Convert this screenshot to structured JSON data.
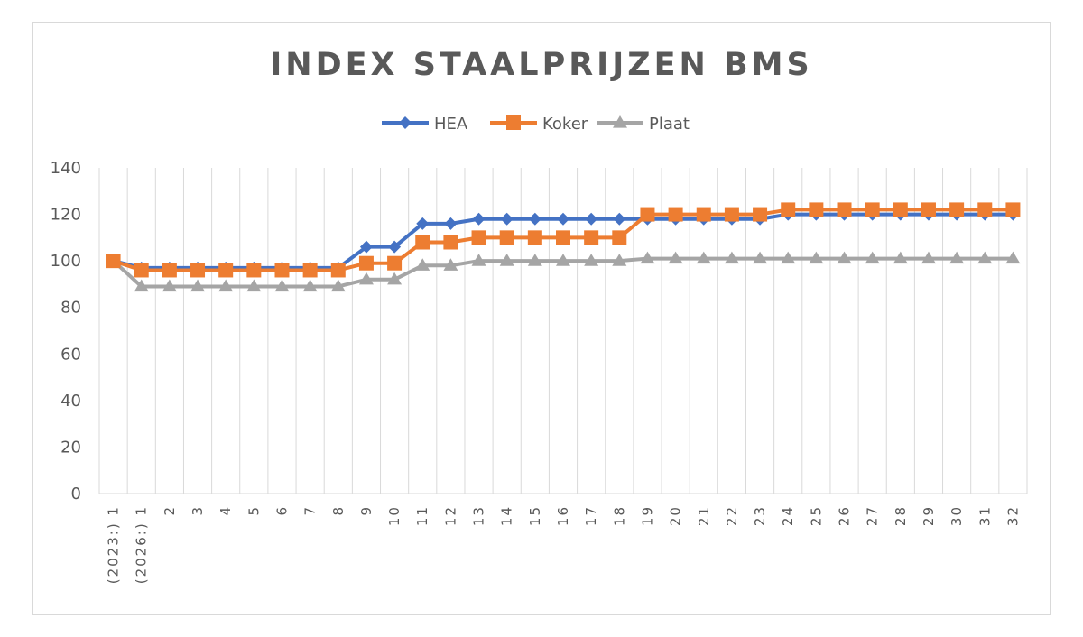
{
  "chart_data": {
    "type": "line",
    "title": "INDEX STAALPRIJZEN BMS",
    "xlabel": "",
    "ylabel": "",
    "ylim": [
      0,
      140
    ],
    "yticks": [
      0,
      20,
      40,
      60,
      80,
      100,
      120,
      140
    ],
    "grid": "vertical",
    "legend_position": "top",
    "categories": [
      "(2023:) 1",
      "(2026:) 1",
      "2",
      "3",
      "4",
      "5",
      "6",
      "7",
      "8",
      "9",
      "10",
      "11",
      "12",
      "13",
      "14",
      "15",
      "16",
      "17",
      "18",
      "19",
      "20",
      "21",
      "22",
      "23",
      "24",
      "25",
      "26",
      "27",
      "28",
      "29",
      "30",
      "31",
      "32"
    ],
    "series": [
      {
        "name": "HEA",
        "color": "#4472c4",
        "marker": "diamond",
        "values": [
          100,
          97,
          97,
          97,
          97,
          97,
          97,
          97,
          97,
          106,
          106,
          116,
          116,
          118,
          118,
          118,
          118,
          118,
          118,
          118,
          118,
          118,
          118,
          118,
          120,
          120,
          120,
          120,
          120,
          120,
          120,
          120,
          120
        ]
      },
      {
        "name": "Koker",
        "color": "#ed7d31",
        "marker": "square",
        "values": [
          100,
          96,
          96,
          96,
          96,
          96,
          96,
          96,
          96,
          99,
          99,
          108,
          108,
          110,
          110,
          110,
          110,
          110,
          110,
          120,
          120,
          120,
          120,
          120,
          122,
          122,
          122,
          122,
          122,
          122,
          122,
          122,
          122
        ]
      },
      {
        "name": "Plaat",
        "color": "#a5a5a5",
        "marker": "triangle",
        "values": [
          100,
          89,
          89,
          89,
          89,
          89,
          89,
          89,
          89,
          92,
          92,
          98,
          98,
          100,
          100,
          100,
          100,
          100,
          100,
          101,
          101,
          101,
          101,
          101,
          101,
          101,
          101,
          101,
          101,
          101,
          101,
          101,
          101
        ]
      }
    ]
  }
}
